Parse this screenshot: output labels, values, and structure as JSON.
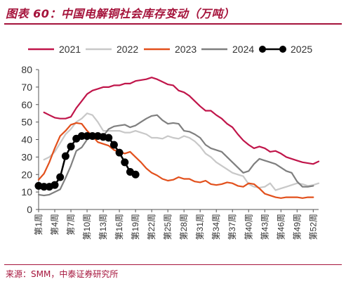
{
  "title": "图表 60：中国电解铜社会库存变动（万吨）",
  "source": "来源：SMM，中泰证券研究所",
  "chart_data": {
    "type": "line",
    "ylim": [
      0,
      80
    ],
    "yticks": [
      0,
      10,
      20,
      30,
      40,
      50,
      60,
      70,
      80
    ],
    "xmax_week": 53,
    "xtick_labels": [
      "第1周",
      "第4周",
      "第7周",
      "第10周",
      "第13周",
      "第16周",
      "第19周",
      "第22周",
      "第25周",
      "第28周",
      "第31周",
      "第34周",
      "第37周",
      "第40周",
      "第43周",
      "第46周",
      "第49周",
      "第52周"
    ],
    "xtick_weeks": [
      1,
      4,
      7,
      10,
      13,
      16,
      19,
      22,
      25,
      28,
      31,
      34,
      37,
      40,
      43,
      46,
      49,
      52
    ],
    "legend_position": "top",
    "series": [
      {
        "name": "2021",
        "color": "#c0154a",
        "marker": false,
        "x": [
          2,
          3,
          4,
          5,
          6,
          7,
          8,
          9,
          10,
          11,
          12,
          13,
          14,
          15,
          16,
          17,
          18,
          19,
          20,
          21,
          22,
          23,
          24,
          25,
          26,
          27,
          28,
          29,
          30,
          31,
          32,
          33,
          34,
          35,
          36,
          37,
          38,
          39,
          40,
          41,
          42,
          43,
          44,
          45,
          46,
          47,
          48,
          49,
          50,
          51,
          52,
          53
        ],
        "values": [
          55.5,
          54,
          52.5,
          52,
          52,
          53,
          58,
          62,
          66,
          68,
          69,
          70,
          70,
          71,
          71,
          72,
          72,
          73.5,
          74,
          74.5,
          75.5,
          74.5,
          73,
          71.5,
          71,
          68,
          67,
          65,
          62,
          59,
          56.5,
          56.5,
          54,
          52,
          49,
          47,
          43,
          39.5,
          37,
          35,
          36,
          35,
          33,
          33.5,
          32,
          30,
          29,
          28,
          27,
          26.5,
          26,
          27.5
        ]
      },
      {
        "name": "2022",
        "color": "#c8c8c8",
        "marker": false,
        "x": [
          2,
          3,
          4,
          5,
          6,
          7,
          8,
          9,
          10,
          11,
          12,
          13,
          14,
          15,
          16,
          17,
          18,
          19,
          20,
          21,
          22,
          23,
          24,
          25,
          26,
          27,
          28,
          29,
          30,
          31,
          32,
          33,
          34,
          35,
          36,
          37,
          38,
          39,
          40,
          41,
          42,
          43,
          44,
          45,
          46,
          47,
          48,
          49,
          50,
          51,
          52,
          53
        ],
        "values": [
          28.5,
          30,
          33,
          38,
          43,
          46,
          50,
          52,
          55,
          54,
          50,
          45,
          45,
          45,
          45,
          44,
          44,
          45,
          44,
          43,
          41,
          41,
          40.5,
          42,
          41,
          40.5,
          42,
          41,
          39,
          36,
          32,
          30,
          27,
          25,
          23,
          21,
          20,
          19,
          14.5,
          13,
          12.5,
          13,
          15,
          11,
          12,
          13,
          14,
          15,
          14.5,
          13.5,
          14,
          15
        ]
      },
      {
        "name": "2023",
        "color": "#e2501c",
        "marker": false,
        "x": [
          1,
          2,
          3,
          4,
          5,
          6,
          7,
          8,
          9,
          10,
          11,
          12,
          13,
          14,
          15,
          16,
          17,
          18,
          19,
          20,
          21,
          22,
          23,
          24,
          25,
          26,
          27,
          28,
          29,
          30,
          31,
          32,
          33,
          34,
          35,
          36,
          37,
          38,
          39,
          40,
          41,
          42,
          43,
          44,
          45,
          46,
          47,
          48,
          49,
          50,
          51,
          52
        ],
        "values": [
          17,
          20.5,
          27,
          35,
          42,
          45,
          48.5,
          49.5,
          49,
          45,
          42,
          38.5,
          37.5,
          36.5,
          34,
          33,
          32,
          33,
          30,
          27,
          23.5,
          21,
          19.5,
          17.5,
          16.5,
          17,
          18.5,
          17.5,
          17.5,
          16,
          15.5,
          16.5,
          14.5,
          14,
          14.5,
          15.5,
          15,
          13.5,
          13,
          15,
          14.5,
          12,
          9,
          8,
          7,
          6.5,
          7,
          7,
          7,
          6.5,
          7,
          7
        ]
      },
      {
        "name": "2024",
        "color": "#7f7f7f",
        "marker": false,
        "x": [
          1,
          2,
          3,
          4,
          5,
          6,
          7,
          8,
          9,
          10,
          11,
          12,
          13,
          14,
          15,
          16,
          17,
          18,
          19,
          20,
          21,
          22,
          23,
          24,
          25,
          26,
          27,
          28,
          29,
          30,
          31,
          32,
          33,
          34,
          35,
          36,
          37,
          38,
          39,
          40,
          41,
          42,
          43,
          44,
          45,
          46,
          47,
          48,
          49,
          50,
          51,
          52
        ],
        "values": [
          8.5,
          8,
          8.5,
          10,
          11.5,
          18,
          25,
          33.5,
          35.5,
          40,
          42,
          42,
          42,
          46,
          47.5,
          48,
          48.5,
          47,
          48,
          50,
          52,
          53.5,
          54,
          51,
          49,
          49.5,
          49,
          45,
          44.5,
          43,
          41,
          37,
          35,
          34,
          33,
          30,
          27,
          24,
          21,
          22,
          26,
          29,
          28,
          27,
          26,
          24,
          22,
          21,
          16,
          13,
          13,
          13.5
        ]
      },
      {
        "name": "2025",
        "color": "#000000",
        "marker": true,
        "x": [
          1,
          2,
          3,
          4,
          5,
          6,
          7,
          8,
          9,
          10,
          11,
          12,
          13,
          14,
          15,
          16,
          17,
          18,
          19
        ],
        "values": [
          13.5,
          13,
          13,
          14,
          18.5,
          30.5,
          36,
          40.5,
          42,
          42,
          42,
          42,
          41.5,
          41,
          37,
          32.5,
          27,
          21.5,
          20
        ]
      }
    ]
  }
}
